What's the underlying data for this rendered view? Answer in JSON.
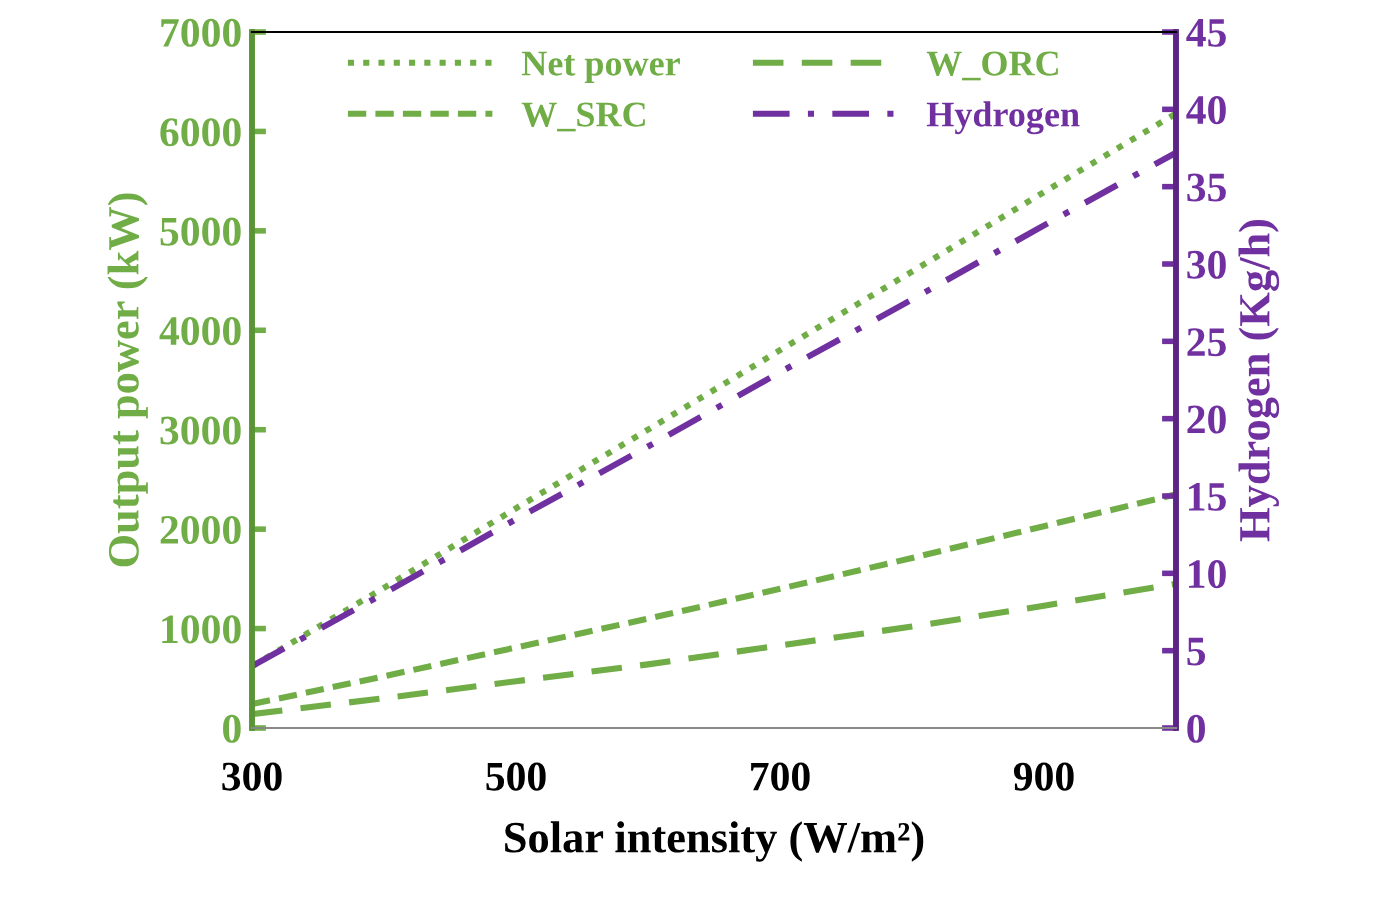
{
  "chart_data": {
    "type": "line",
    "xlabel": "Solar intensity (W/m²)",
    "ylabel": "Output power (kW)",
    "y2label": "Hydrogen (Kg/h)",
    "x": [
      300,
      400,
      500,
      600,
      700,
      800,
      900,
      1000
    ],
    "series": [
      {
        "name": "Net power",
        "color": "#70ad47",
        "line_style": "dotted",
        "values": [
          620,
          1410,
          2210,
          3000,
          3800,
          4590,
          5390,
          6180
        ]
      },
      {
        "name": "W_SRC",
        "color": "#70ad47",
        "line_style": "dashed",
        "values": [
          240,
          520,
          810,
          1100,
          1400,
          1710,
          2030,
          2350
        ]
      },
      {
        "name": "W_ORC",
        "color": "#70ad47",
        "line_style": "dashed",
        "values": [
          140,
          300,
          470,
          640,
          830,
          1020,
          1230,
          1450
        ]
      },
      {
        "name": "Hydrogen",
        "color": "#7030a0",
        "line_style": "dashdot",
        "axis": "y2",
        "values": [
          4.0,
          8.7,
          13.5,
          18.2,
          23.0,
          27.7,
          32.5,
          37.2
        ]
      }
    ],
    "xlim": [
      300,
      1000
    ],
    "xticks": [
      300,
      500,
      700,
      900
    ],
    "ylim": [
      0,
      7000
    ],
    "yticks": [
      0,
      1000,
      2000,
      3000,
      4000,
      5000,
      6000,
      7000
    ],
    "y2lim": [
      0,
      45
    ],
    "y2ticks": [
      0,
      5,
      10,
      15,
      20,
      25,
      30,
      35,
      40,
      45
    ],
    "grid": false,
    "legend": "top",
    "marker": "none"
  }
}
